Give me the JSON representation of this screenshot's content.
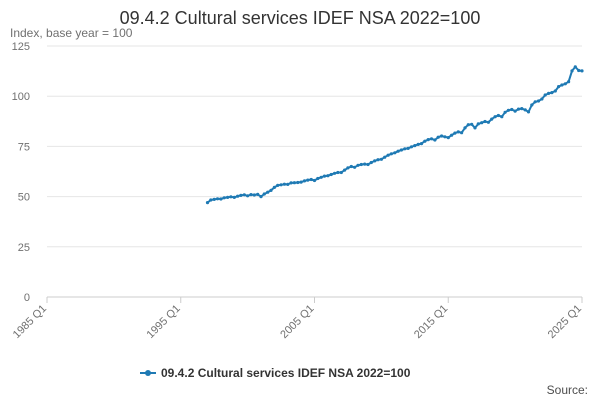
{
  "chart_data": {
    "type": "line",
    "title": "09.4.2 Cultural services IDEF NSA 2022=100",
    "subtitle": "Index, base year = 100",
    "xlabel": "",
    "ylabel": "",
    "x_range": [
      "1985 Q1",
      "2025 Q1"
    ],
    "x_ticks": [
      "1985 Q1",
      "1995 Q1",
      "2005 Q1",
      "2015 Q1",
      "2025 Q1"
    ],
    "ylim": [
      0,
      125
    ],
    "y_ticks": [
      0,
      25,
      50,
      75,
      100,
      125
    ],
    "grid": "horizontal",
    "legend_position": "bottom",
    "source_label": "Source:",
    "series": [
      {
        "name": "09.4.2 Cultural services IDEF NSA 2022=100",
        "color": "#1f7ab4",
        "marker": "circle",
        "points": [
          [
            "1997 Q1",
            47.0
          ],
          [
            "1997 Q2",
            48.3
          ],
          [
            "1997 Q3",
            48.6
          ],
          [
            "1997 Q4",
            48.9
          ],
          [
            "1998 Q1",
            48.8
          ],
          [
            "1998 Q2",
            49.4
          ],
          [
            "1998 Q3",
            49.6
          ],
          [
            "1998 Q4",
            49.9
          ],
          [
            "1999 Q1",
            49.6
          ],
          [
            "1999 Q2",
            50.2
          ],
          [
            "1999 Q3",
            50.6
          ],
          [
            "1999 Q4",
            50.9
          ],
          [
            "2000 Q1",
            50.4
          ],
          [
            "2000 Q2",
            51.0
          ],
          [
            "2000 Q3",
            50.8
          ],
          [
            "2000 Q4",
            51.1
          ],
          [
            "2001 Q1",
            50.0
          ],
          [
            "2001 Q2",
            51.3
          ],
          [
            "2001 Q3",
            52.2
          ],
          [
            "2001 Q4",
            53.1
          ],
          [
            "2002 Q1",
            54.6
          ],
          [
            "2002 Q2",
            55.6
          ],
          [
            "2002 Q3",
            55.9
          ],
          [
            "2002 Q4",
            56.2
          ],
          [
            "2003 Q1",
            56.1
          ],
          [
            "2003 Q2",
            56.8
          ],
          [
            "2003 Q3",
            56.9
          ],
          [
            "2003 Q4",
            57.0
          ],
          [
            "2004 Q1",
            57.2
          ],
          [
            "2004 Q2",
            57.8
          ],
          [
            "2004 Q3",
            58.2
          ],
          [
            "2004 Q4",
            58.5
          ],
          [
            "2005 Q1",
            58.0
          ],
          [
            "2005 Q2",
            59.0
          ],
          [
            "2005 Q3",
            59.6
          ],
          [
            "2005 Q4",
            60.2
          ],
          [
            "2006 Q1",
            60.4
          ],
          [
            "2006 Q2",
            61.0
          ],
          [
            "2006 Q3",
            61.6
          ],
          [
            "2006 Q4",
            62.0
          ],
          [
            "2007 Q1",
            62.0
          ],
          [
            "2007 Q2",
            63.2
          ],
          [
            "2007 Q3",
            64.3
          ],
          [
            "2007 Q4",
            65.0
          ],
          [
            "2008 Q1",
            64.6
          ],
          [
            "2008 Q2",
            65.6
          ],
          [
            "2008 Q3",
            66.0
          ],
          [
            "2008 Q4",
            66.2
          ],
          [
            "2009 Q1",
            66.0
          ],
          [
            "2009 Q2",
            67.0
          ],
          [
            "2009 Q3",
            67.8
          ],
          [
            "2009 Q4",
            68.4
          ],
          [
            "2010 Q1",
            68.6
          ],
          [
            "2010 Q2",
            69.6
          ],
          [
            "2010 Q3",
            70.6
          ],
          [
            "2010 Q4",
            71.3
          ],
          [
            "2011 Q1",
            71.8
          ],
          [
            "2011 Q2",
            72.6
          ],
          [
            "2011 Q3",
            73.2
          ],
          [
            "2011 Q4",
            73.8
          ],
          [
            "2012 Q1",
            74.0
          ],
          [
            "2012 Q2",
            74.8
          ],
          [
            "2012 Q3",
            75.4
          ],
          [
            "2012 Q4",
            76.0
          ],
          [
            "2013 Q1",
            76.4
          ],
          [
            "2013 Q2",
            77.6
          ],
          [
            "2013 Q3",
            78.4
          ],
          [
            "2013 Q4",
            78.8
          ],
          [
            "2014 Q1",
            78.2
          ],
          [
            "2014 Q2",
            79.6
          ],
          [
            "2014 Q3",
            80.2
          ],
          [
            "2014 Q4",
            79.8
          ],
          [
            "2015 Q1",
            79.4
          ],
          [
            "2015 Q2",
            80.6
          ],
          [
            "2015 Q3",
            81.6
          ],
          [
            "2015 Q4",
            82.2
          ],
          [
            "2016 Q1",
            81.8
          ],
          [
            "2016 Q2",
            84.2
          ],
          [
            "2016 Q3",
            85.8
          ],
          [
            "2016 Q4",
            86.0
          ],
          [
            "2017 Q1",
            84.2
          ],
          [
            "2017 Q2",
            86.2
          ],
          [
            "2017 Q3",
            86.8
          ],
          [
            "2017 Q4",
            87.4
          ],
          [
            "2018 Q1",
            87.0
          ],
          [
            "2018 Q2",
            88.6
          ],
          [
            "2018 Q3",
            89.8
          ],
          [
            "2018 Q4",
            90.4
          ],
          [
            "2019 Q1",
            89.8
          ],
          [
            "2019 Q2",
            92.0
          ],
          [
            "2019 Q3",
            93.0
          ],
          [
            "2019 Q4",
            93.4
          ],
          [
            "2020 Q1",
            92.6
          ],
          [
            "2020 Q2",
            93.6
          ],
          [
            "2020 Q3",
            93.8
          ],
          [
            "2020 Q4",
            93.2
          ],
          [
            "2021 Q1",
            92.2
          ],
          [
            "2021 Q2",
            95.6
          ],
          [
            "2021 Q3",
            97.2
          ],
          [
            "2021 Q4",
            97.6
          ],
          [
            "2022 Q1",
            98.6
          ],
          [
            "2022 Q2",
            100.6
          ],
          [
            "2022 Q3",
            101.4
          ],
          [
            "2022 Q4",
            101.8
          ],
          [
            "2023 Q1",
            102.6
          ],
          [
            "2023 Q2",
            104.8
          ],
          [
            "2023 Q3",
            105.6
          ],
          [
            "2023 Q4",
            106.2
          ],
          [
            "2024 Q1",
            107.2
          ],
          [
            "2024 Q2",
            112.6
          ],
          [
            "2024 Q3",
            114.6
          ],
          [
            "2024 Q4",
            112.8
          ],
          [
            "2025 Q1",
            112.6
          ]
        ]
      }
    ]
  }
}
